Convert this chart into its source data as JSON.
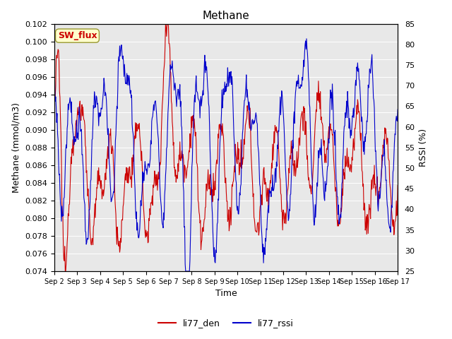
{
  "title": "Methane",
  "xlabel": "Time",
  "ylabel_left": "Methane (mmol/m3)",
  "ylabel_right": "RSSI (%)",
  "ylim_left": [
    0.074,
    0.102
  ],
  "ylim_right": [
    25,
    85
  ],
  "title_fontsize": 11,
  "axis_fontsize": 9,
  "tick_fontsize": 8,
  "legend_labels": [
    "li77_den",
    "li77_rssi"
  ],
  "color_den": "#cc0000",
  "color_rssi": "#0000cc",
  "background_color": "#e8e8e8",
  "sw_flux_label": "SW_flux",
  "sw_flux_bg": "#ffffcc",
  "sw_flux_edge": "#999933",
  "sw_flux_text_color": "#cc0000",
  "n_points": 720,
  "figwidth": 6.4,
  "figheight": 4.8,
  "dpi": 100
}
